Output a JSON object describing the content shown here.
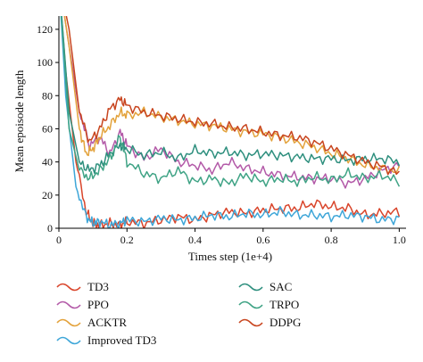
{
  "chart_data": {
    "type": "line",
    "title": "",
    "xlabel": "Times step (1e+4)",
    "ylabel": "Mean epoisode length",
    "xlim": [
      0,
      1.02
    ],
    "ylim": [
      0,
      128
    ],
    "xticks": [
      "0",
      "0.2",
      "0.4",
      "0.6",
      "0.8",
      "1.0"
    ],
    "yticks": [
      "0",
      "20",
      "40",
      "60",
      "80",
      "100",
      "120"
    ],
    "grid": false,
    "legend": "bottom",
    "series": [
      {
        "name": "TD3",
        "color": "#d9452b",
        "x": [
          0,
          0.02,
          0.05,
          0.08,
          0.1,
          0.12,
          0.15,
          0.18,
          0.2,
          0.25,
          0.3,
          0.35,
          0.4,
          0.45,
          0.5,
          0.55,
          0.6,
          0.65,
          0.7,
          0.75,
          0.8,
          0.85,
          0.9,
          0.95,
          1.0
        ],
        "y": [
          150,
          95,
          40,
          10,
          3,
          2,
          3,
          2,
          4,
          3,
          5,
          7,
          5,
          8,
          10,
          9,
          11,
          12,
          12,
          15,
          13,
          12,
          8,
          9,
          10
        ]
      },
      {
        "name": "PPO",
        "color": "#b35aa8",
        "x": [
          0,
          0.03,
          0.06,
          0.09,
          0.12,
          0.15,
          0.18,
          0.2,
          0.25,
          0.3,
          0.35,
          0.4,
          0.45,
          0.5,
          0.55,
          0.6,
          0.65,
          0.7,
          0.75,
          0.8,
          0.85,
          0.9,
          0.95,
          1.0
        ],
        "y": [
          150,
          110,
          70,
          50,
          55,
          45,
          58,
          50,
          42,
          48,
          40,
          38,
          35,
          40,
          36,
          34,
          32,
          31,
          30,
          30,
          27,
          30,
          35,
          38
        ]
      },
      {
        "name": "ACKTR",
        "color": "#e3a23b",
        "x": [
          0,
          0.03,
          0.06,
          0.08,
          0.1,
          0.12,
          0.15,
          0.18,
          0.2,
          0.25,
          0.3,
          0.35,
          0.4,
          0.45,
          0.5,
          0.55,
          0.6,
          0.65,
          0.7,
          0.75,
          0.8,
          0.85,
          0.9,
          0.95,
          1.0
        ],
        "y": [
          150,
          110,
          60,
          45,
          48,
          55,
          62,
          70,
          68,
          70,
          67,
          65,
          63,
          62,
          60,
          58,
          57,
          55,
          52,
          49,
          45,
          42,
          38,
          36,
          34
        ]
      },
      {
        "name": "Improved TD3",
        "color": "#3ea6d8",
        "x": [
          0,
          0.02,
          0.05,
          0.08,
          0.1,
          0.12,
          0.15,
          0.18,
          0.2,
          0.25,
          0.3,
          0.35,
          0.4,
          0.45,
          0.5,
          0.55,
          0.6,
          0.65,
          0.7,
          0.75,
          0.8,
          0.85,
          0.9,
          0.95,
          1.0
        ],
        "y": [
          150,
          80,
          25,
          7,
          3,
          4,
          2,
          3,
          5,
          4,
          6,
          5,
          6,
          8,
          7,
          9,
          8,
          10,
          8,
          8,
          7,
          8,
          7,
          5,
          6
        ]
      },
      {
        "name": "SAC",
        "color": "#2e8f7e",
        "x": [
          0,
          0.03,
          0.06,
          0.09,
          0.12,
          0.15,
          0.18,
          0.2,
          0.25,
          0.3,
          0.35,
          0.4,
          0.45,
          0.5,
          0.55,
          0.6,
          0.65,
          0.7,
          0.75,
          0.8,
          0.85,
          0.9,
          0.95,
          1.0
        ],
        "y": [
          150,
          70,
          40,
          35,
          38,
          45,
          50,
          48,
          44,
          46,
          42,
          47,
          45,
          46,
          44,
          45,
          44,
          43,
          42,
          42,
          41,
          42,
          42,
          40
        ]
      },
      {
        "name": "TRPO",
        "color": "#3fa385",
        "x": [
          0,
          0.03,
          0.06,
          0.09,
          0.12,
          0.15,
          0.18,
          0.2,
          0.25,
          0.3,
          0.35,
          0.4,
          0.45,
          0.5,
          0.55,
          0.6,
          0.65,
          0.7,
          0.75,
          0.8,
          0.85,
          0.9,
          0.95,
          1.0
        ],
        "y": [
          150,
          60,
          35,
          30,
          35,
          42,
          55,
          40,
          33,
          30,
          35,
          28,
          30,
          27,
          32,
          28,
          30,
          28,
          31,
          29,
          33,
          30,
          32,
          28
        ]
      },
      {
        "name": "DDPG",
        "color": "#c8451f",
        "x": [
          0,
          0.03,
          0.06,
          0.09,
          0.12,
          0.15,
          0.18,
          0.2,
          0.25,
          0.3,
          0.35,
          0.4,
          0.45,
          0.5,
          0.55,
          0.6,
          0.65,
          0.7,
          0.75,
          0.8,
          0.85,
          0.9,
          0.95,
          1.0
        ],
        "y": [
          150,
          120,
          70,
          52,
          60,
          72,
          78,
          74,
          70,
          68,
          66,
          64,
          63,
          61,
          60,
          58,
          56,
          55,
          52,
          48,
          44,
          40,
          37,
          33
        ]
      }
    ]
  }
}
